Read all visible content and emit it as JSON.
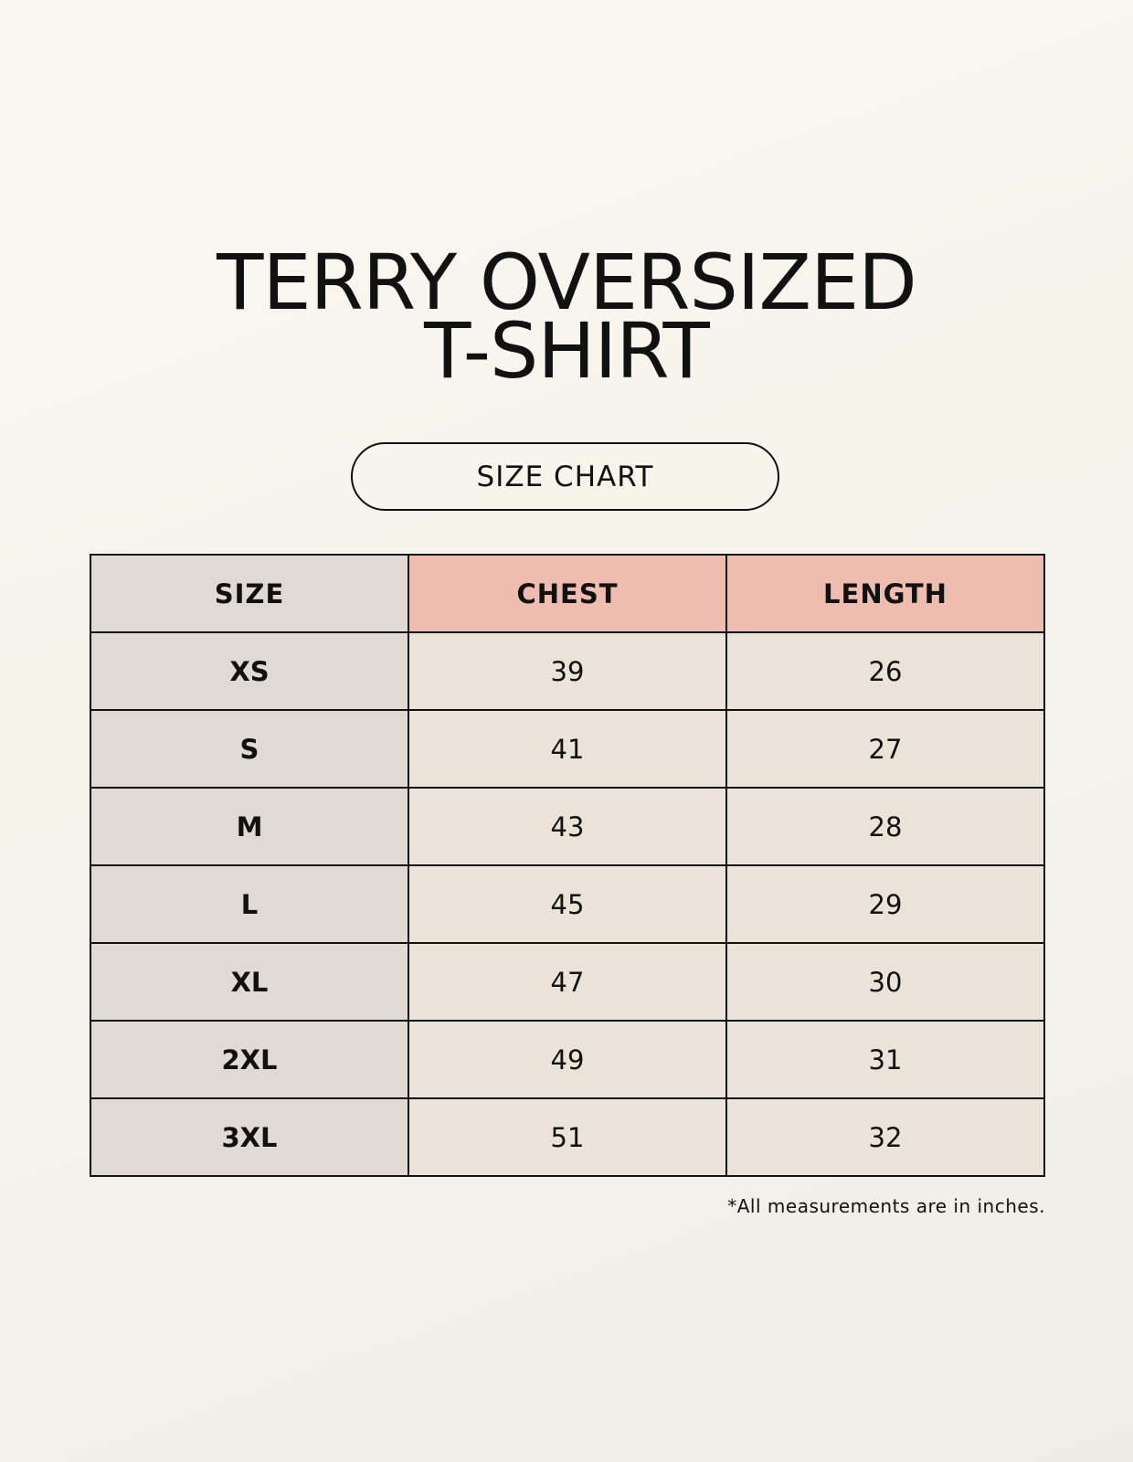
{
  "title": {
    "line1": "TERRY OVERSIZED",
    "line2": "T-SHIRT"
  },
  "subtitle": "SIZE CHART",
  "table": {
    "headers": [
      "SIZE",
      "CHEST",
      "LENGTH"
    ],
    "rows": [
      [
        "XS",
        "39",
        "26"
      ],
      [
        "S",
        "41",
        "27"
      ],
      [
        "M",
        "43",
        "28"
      ],
      [
        "L",
        "45",
        "29"
      ],
      [
        "XL",
        "47",
        "30"
      ],
      [
        "2XL",
        "49",
        "31"
      ],
      [
        "3XL",
        "51",
        "32"
      ]
    ]
  },
  "note": "*All measurements are in inches.",
  "colors": {
    "background": "#f8f6f0",
    "size_column": "#e0d9d4",
    "header_accent": "#efbdb0",
    "cell": "#ebe3d8"
  }
}
